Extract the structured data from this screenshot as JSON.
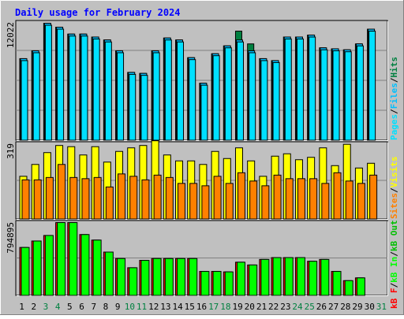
{
  "chart_data": {
    "type": "bar",
    "title": "Daily usage for February 2024",
    "colors": {
      "background": "#c0c0c0",
      "title": "#0000ff",
      "hits": "#008040",
      "files": "#00c0ff",
      "pages": "#00e0ff",
      "visits": "#ffff00",
      "sites": "#ff8000",
      "kb_f": "#ff0000",
      "kb_in": "#00ff00",
      "kb_out": "#00c000",
      "day_weekday": "#000000",
      "day_weekend": "#008040"
    },
    "days": [
      "1",
      "2",
      "3",
      "4",
      "5",
      "6",
      "7",
      "8",
      "9",
      "10",
      "11",
      "12",
      "13",
      "14",
      "15",
      "16",
      "17",
      "18",
      "19",
      "20",
      "21",
      "22",
      "23",
      "24",
      "25",
      "26",
      "27",
      "28",
      "29",
      "30",
      "31"
    ],
    "weekend_days": [
      3,
      4,
      10,
      11,
      17,
      18,
      24,
      25,
      31
    ],
    "panels": {
      "hits_files_pages": {
        "max_label": "12022",
        "max": 12022,
        "legend": [
          {
            "key": "hits",
            "label": "Hits"
          },
          {
            "key": "files",
            "label": "Files"
          },
          {
            "key": "pages",
            "label": "Pages"
          }
        ],
        "hits": [
          8300,
          9100,
          11900,
          11500,
          10800,
          10800,
          10500,
          10200,
          9100,
          6900,
          6800,
          9100,
          10400,
          10200,
          8400,
          5800,
          8800,
          9600,
          11100,
          9800,
          8300,
          8100,
          10500,
          10500,
          10700,
          9400,
          9300,
          9200,
          9800,
          11300
        ],
        "files": [
          8300,
          9100,
          11900,
          11500,
          10800,
          10800,
          10500,
          10200,
          9100,
          6900,
          6800,
          9100,
          10400,
          10200,
          8400,
          5800,
          8800,
          9600,
          10200,
          9100,
          8300,
          8100,
          10500,
          10500,
          10700,
          9400,
          9300,
          9200,
          9800,
          11300
        ],
        "pages": [
          8100,
          8900,
          11700,
          11300,
          10600,
          10600,
          10300,
          10000,
          8900,
          6700,
          6600,
          8900,
          10200,
          10000,
          8200,
          5600,
          8600,
          9400,
          10000,
          8900,
          8100,
          7900,
          10300,
          10300,
          10500,
          9200,
          9100,
          9000,
          9600,
          11100
        ]
      },
      "visits_sites": {
        "max_label": "319",
        "max": 319,
        "legend": [
          {
            "key": "visits",
            "label": "Visits"
          },
          {
            "key": "sites",
            "label": "Sites"
          }
        ],
        "visits": [
          180,
          230,
          280,
          310,
          305,
          270,
          305,
          240,
          285,
          300,
          310,
          330,
          270,
          245,
          245,
          230,
          285,
          255,
          300,
          245,
          180,
          265,
          275,
          250,
          260,
          300,
          225,
          315,
          215,
          235
        ],
        "sites": [
          165,
          165,
          175,
          230,
          175,
          170,
          175,
          135,
          190,
          180,
          165,
          185,
          175,
          150,
          150,
          140,
          180,
          150,
          195,
          160,
          140,
          185,
          170,
          170,
          170,
          150,
          195,
          160,
          150,
          185
        ]
      },
      "kbytes": {
        "max_label": "794895",
        "max": 794895,
        "legend": [
          {
            "key": "kb_f",
            "label": "kB F"
          },
          {
            "key": "kb_in",
            "label": "kB In"
          },
          {
            "key": "kb_out",
            "label": "kB Out"
          }
        ],
        "kb_f": [
          520000,
          590000,
          650000,
          790000,
          790000,
          660000,
          600000,
          470000,
          400000,
          300000,
          380000,
          400000,
          400000,
          400000,
          400000,
          260000,
          260000,
          255000,
          360000,
          330000,
          390000,
          410000,
          410000,
          410000,
          370000,
          390000,
          260000,
          160000,
          190000
        ],
        "kb_in": [
          520000,
          590000,
          650000,
          790000,
          790000,
          660000,
          600000,
          470000,
          400000,
          300000,
          380000,
          400000,
          400000,
          400000,
          400000,
          260000,
          260000,
          255000,
          360000,
          330000,
          390000,
          410000,
          410000,
          410000,
          370000,
          390000,
          260000,
          160000,
          190000
        ]
      }
    }
  }
}
